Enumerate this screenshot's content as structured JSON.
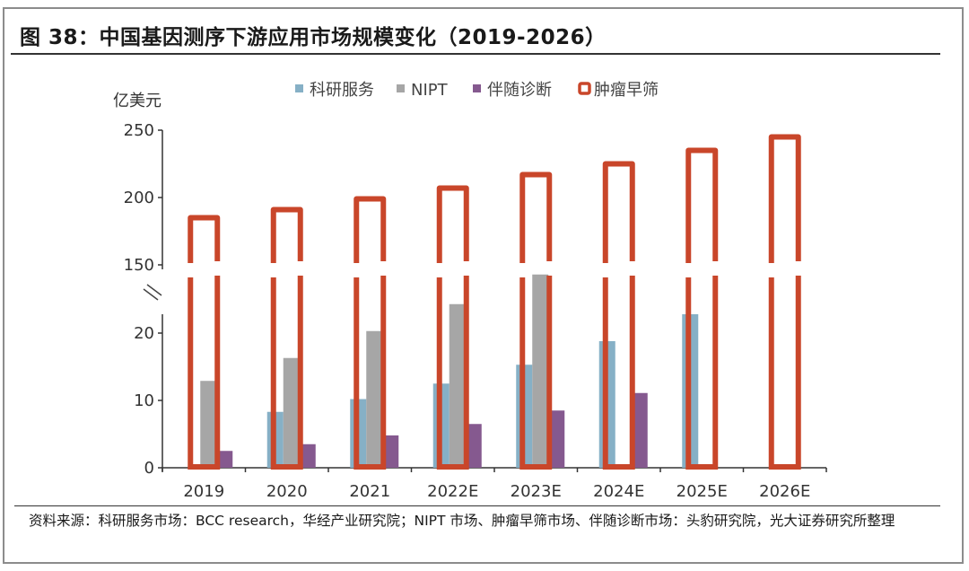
{
  "figure": {
    "title": "图 38：中国基因测序下游应用市场规模变化（2019-2026）",
    "source_note": "资料来源：科研服务市场：BCC research，华经产业研究院；NIPT 市场、肿瘤早筛市场、伴随诊断市场：头豹研究院，光大证券研究所整理"
  },
  "chart_data": {
    "type": "bar",
    "title": "中国基因测序下游应用市场规模变化（2019-2026）",
    "ylabel": "亿美元",
    "xlabel": "",
    "categories": [
      "2019",
      "2020",
      "2021",
      "2022E",
      "2023E",
      "2024E",
      "2025E",
      "2026E"
    ],
    "series": [
      {
        "name": "科研服务",
        "style": "filled",
        "color": "#86b0c6",
        "values": [
          null,
          8.3,
          10.2,
          12.5,
          15.3,
          18.8,
          22.8,
          null
        ]
      },
      {
        "name": "NIPT",
        "style": "filled",
        "color": "#a6a6a6",
        "values": [
          12.9,
          16.3,
          20.3,
          24.3,
          28.7,
          null,
          null,
          null
        ]
      },
      {
        "name": "伴随诊断",
        "style": "filled",
        "color": "#85598f",
        "values": [
          2.5,
          3.5,
          4.8,
          6.5,
          8.5,
          11.1,
          null,
          null
        ]
      },
      {
        "name": "肿瘤早筛",
        "style": "outline",
        "color": "#c9462a",
        "values": [
          185,
          191,
          199,
          207,
          217,
          225,
          235,
          245
        ]
      }
    ],
    "y_axis_broken": true,
    "y_lower": {
      "range": [
        0,
        20
      ],
      "ticks": [
        "0",
        "10",
        "20"
      ]
    },
    "y_upper": {
      "range": [
        150,
        250
      ],
      "ticks": [
        "150",
        "200",
        "250"
      ]
    },
    "legend": {
      "placement": "top-center"
    },
    "grid": false
  }
}
